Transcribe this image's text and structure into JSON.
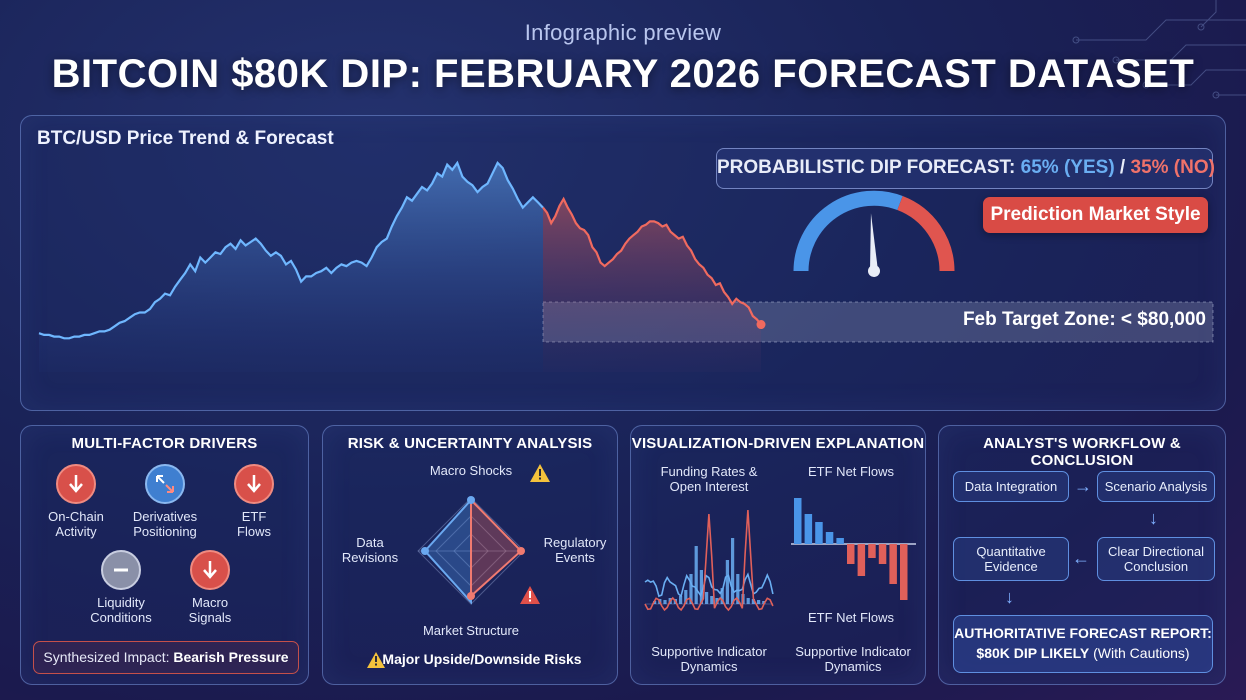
{
  "header": {
    "subtitle": "Infographic preview",
    "title": "BITCOIN $80K DIP: FEBRUARY 2026 FORECAST DATASET"
  },
  "colors": {
    "history_line": "#6fb7ff",
    "forecast_line": "#f06a5f",
    "accent_red": "#d94b45",
    "accent_blue": "#4a8fe0"
  },
  "main_chart": {
    "label": "BTC/USD Price Trend & Forecast",
    "forecast_prefix": "PROBABILISTIC DIP FORECAST: ",
    "forecast_yes": "65% (YES)",
    "forecast_sep": " / ",
    "forecast_no": "35% (NO)",
    "badge": "Prediction Market Style",
    "target_zone": "Feb Target Zone: < $80,000",
    "gauge_probability": 0.65
  },
  "chart_data": {
    "type": "line",
    "title": "BTC/USD Price Trend & Forecast",
    "xlabel": "",
    "ylabel": "",
    "series": [
      {
        "name": "history",
        "values": [
          22,
          21,
          21,
          20,
          20,
          19,
          19,
          20,
          20,
          21,
          21,
          22,
          23,
          23,
          24,
          26,
          28,
          29,
          31,
          33,
          34,
          34,
          36,
          40,
          42,
          45,
          44,
          49,
          53,
          57,
          62,
          58,
          66,
          63,
          66,
          69,
          68,
          72,
          74,
          71,
          76,
          73,
          75,
          77,
          74,
          70,
          67,
          69,
          67,
          62,
          64,
          59,
          52,
          55,
          55,
          57,
          58,
          60,
          57,
          60,
          62,
          61,
          63,
          64,
          63,
          61,
          66,
          72,
          75,
          77,
          84,
          90,
          95,
          101,
          99,
          103,
          107,
          105,
          109,
          115,
          113,
          120,
          117,
          121,
          113,
          110,
          108,
          104,
          107,
          109,
          115,
          121,
          118,
          111,
          106,
          100,
          95,
          98,
          101,
          98,
          95
        ]
      },
      {
        "name": "forecast",
        "values": [
          95,
          92,
          86,
          90,
          96,
          100,
          95,
          91,
          86,
          83,
          82,
          79,
          72,
          69,
          63,
          61,
          63,
          65,
          68,
          70,
          74,
          77,
          79,
          81,
          84,
          85,
          87,
          87,
          86,
          84,
          85,
          81,
          79,
          77,
          78,
          73,
          70,
          65,
          62,
          60,
          56,
          54,
          50,
          51,
          46,
          43,
          39,
          42,
          40,
          39,
          37,
          32,
          30,
          27
        ]
      }
    ],
    "target_zone_label": "Feb Target Zone: < $80,000",
    "forecast_probabilities": {
      "yes": 65,
      "no": 35
    }
  },
  "drivers": {
    "title": "MULTI-FACTOR DRIVERS",
    "factors": [
      {
        "label_1": "On-Chain",
        "label_2": "Activity",
        "icon": "down-arrow-icon"
      },
      {
        "label_1": "Derivatives",
        "label_2": "Positioning",
        "icon": "diverging-arrows-icon"
      },
      {
        "label_1": "ETF",
        "label_2": "Flows",
        "icon": "down-arrow-icon"
      },
      {
        "label_1": "Liquidity",
        "label_2": "Conditions",
        "icon": "minus-icon"
      },
      {
        "label_1": "Macro",
        "label_2": "Signals",
        "icon": "down-arrow-icon"
      }
    ],
    "impact_prefix": "Synthesized Impact: ",
    "impact_value": "Bearish Pressure"
  },
  "risk": {
    "title": "RISK & UNCERTAINTY ANALYSIS",
    "axes": {
      "top": "Macro Shocks",
      "right_1": "Regulatory",
      "right_2": "Events",
      "bottom": "Market Structure",
      "left_1": "Data",
      "left_2": "Revisions"
    },
    "footer": "Major Upside/Downside Risks"
  },
  "viz": {
    "title": "VISUALIZATION-DRIVEN EXPLANATION",
    "left_top_1": "Funding Rates &",
    "left_top_2": "Open Interest",
    "right_top": "ETF Net Flows",
    "right_mid": "ETF Net Flows",
    "left_bottom_1": "Supportive Indicator",
    "left_bottom_2": "Dynamics",
    "right_bottom_1": "Supportive Indicator",
    "right_bottom_2": "Dynamics"
  },
  "workflow": {
    "title": "ANALYST'S WORKFLOW & CONCLUSION",
    "step_integration": "Data Integration",
    "step_scenario": "Scenario Analysis",
    "step_quant_1": "Quantitative",
    "step_quant_2": "Evidence",
    "step_clear_1": "Clear Directional",
    "step_clear_2": "Conclusion",
    "final_1": "AUTHORITATIVE FORECAST REPORT:",
    "final_2_bold": "$80K DIP LIKELY",
    "final_2_rest": " (With Cautions)"
  }
}
